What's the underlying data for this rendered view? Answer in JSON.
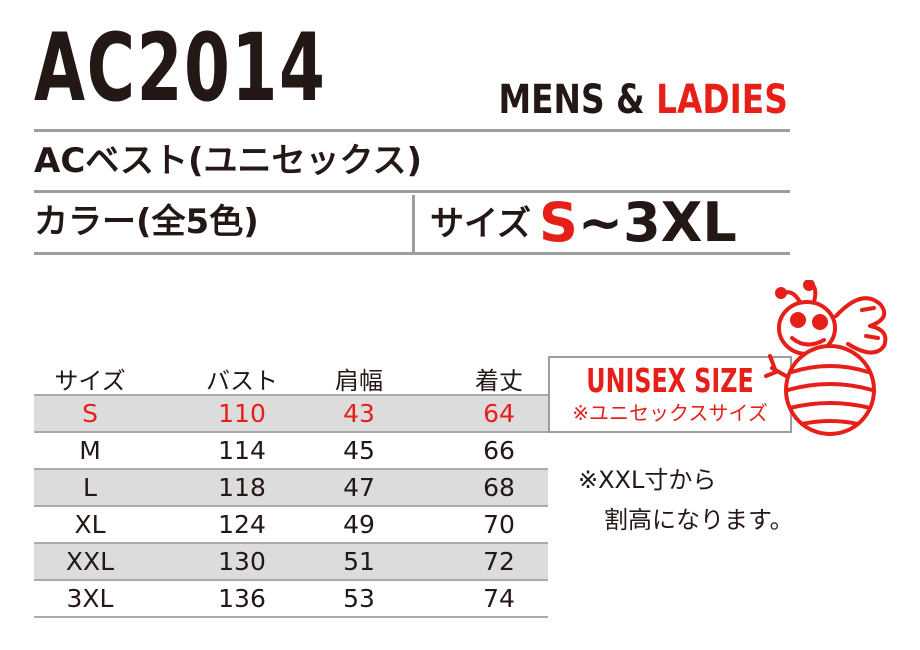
{
  "header": {
    "model": "AC2014",
    "gender_mens": "MENS & ",
    "gender_ladies": "LADIES",
    "product_name": "ACベスト(ユニセックス)",
    "colors": "カラー(全5色)",
    "size_label": "サイズ",
    "size_start": "S",
    "size_end": "~3XL"
  },
  "table": {
    "headers": [
      "サイズ",
      "バスト",
      "肩幅",
      "着丈"
    ],
    "rows": [
      [
        "S",
        "110",
        "43",
        "64"
      ],
      [
        "M",
        "114",
        "45",
        "66"
      ],
      [
        "L",
        "118",
        "47",
        "68"
      ],
      [
        "XL",
        "124",
        "49",
        "70"
      ],
      [
        "XXL",
        "130",
        "51",
        "72"
      ],
      [
        "3XL",
        "136",
        "53",
        "74"
      ]
    ]
  },
  "unisex": {
    "title": "UNISEX SIZE",
    "subtitle": "※ユニセックスサイズ"
  },
  "notes": {
    "line1": "※XXL寸から",
    "line2": "割高になります。"
  },
  "mascot": {
    "icon": "bee-mascot-icon"
  },
  "colors": {
    "accent": "#e61f19",
    "rule": "#9d9d9d",
    "shade": "#dcdcdc",
    "text": "#231815"
  }
}
